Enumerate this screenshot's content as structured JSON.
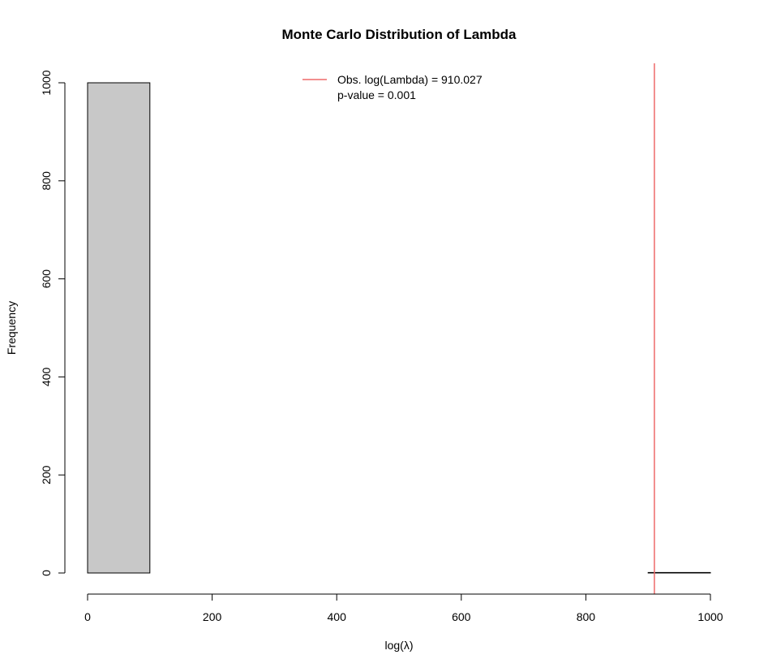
{
  "chart_data": {
    "type": "bar",
    "title": "Monte Carlo Distribution of Lambda",
    "xlabel": "log(λ)",
    "ylabel": "Frequency",
    "xlim": [
      0,
      1000
    ],
    "ylim": [
      0,
      1000
    ],
    "x_ticks": [
      0,
      200,
      400,
      600,
      800,
      1000
    ],
    "y_ticks": [
      0,
      200,
      400,
      600,
      800,
      1000
    ],
    "bins": [
      {
        "x0": 0,
        "x1": 100,
        "count": 1000
      },
      {
        "x0": 100,
        "x1": 200,
        "count": 0
      },
      {
        "x0": 200,
        "x1": 300,
        "count": 0
      },
      {
        "x0": 300,
        "x1": 400,
        "count": 0
      },
      {
        "x0": 400,
        "x1": 500,
        "count": 0
      },
      {
        "x0": 500,
        "x1": 600,
        "count": 0
      },
      {
        "x0": 600,
        "x1": 700,
        "count": 0
      },
      {
        "x0": 700,
        "x1": 800,
        "count": 0
      },
      {
        "x0": 800,
        "x1": 900,
        "count": 0
      },
      {
        "x0": 900,
        "x1": 1000,
        "count": 1
      }
    ],
    "bar_color": "#c8c8c8",
    "reference_line": {
      "x": 910.027,
      "color": "#ee6a6a"
    },
    "legend": {
      "placement": "top-center",
      "entries": [
        "Obs. log(Lambda) = 910.027",
        "p-value = 0.001"
      ]
    }
  }
}
